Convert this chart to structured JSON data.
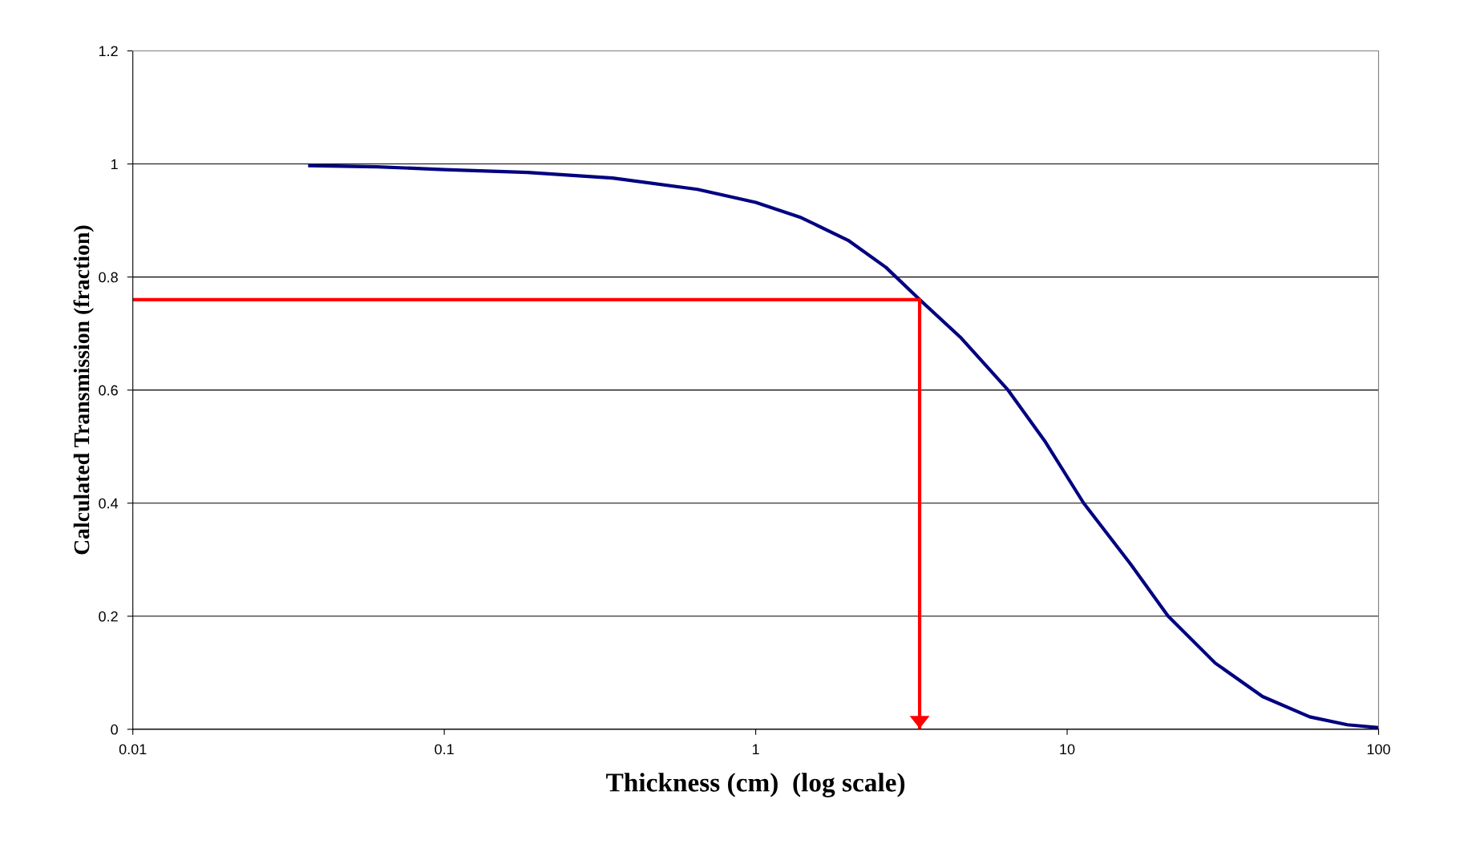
{
  "chart_data": {
    "type": "line",
    "xlabel": "Thickness (cm)  (log scale)",
    "ylabel": "Calculated Transmission (fraction)",
    "log": "x",
    "grid": "y",
    "xlim": [
      0.01,
      100
    ],
    "ylim": [
      0,
      1.2
    ],
    "xticks": [
      {
        "value": 0.01,
        "label": "0.01"
      },
      {
        "value": 0.1,
        "label": "0.1"
      },
      {
        "value": 1,
        "label": "1"
      },
      {
        "value": 10,
        "label": "10"
      },
      {
        "value": 100,
        "label": "100"
      }
    ],
    "yticks": [
      0,
      0.2,
      0.4,
      0.6,
      0.8,
      1,
      1.2
    ],
    "series": [
      {
        "color": "#000080",
        "x": [
          0.037,
          0.061,
          0.1,
          0.185,
          0.347,
          0.65,
          1,
          1.4,
          1.98,
          2.62,
          3.36,
          4.57,
          6.46,
          8.52,
          11.3,
          16,
          21.1,
          29.9,
          42.4,
          60.1,
          79.4,
          100
        ],
        "values": [
          0.997,
          0.995,
          0.99,
          0.985,
          0.975,
          0.955,
          0.932,
          0.905,
          0.865,
          0.817,
          0.76,
          0.692,
          0.6,
          0.508,
          0.4,
          0.292,
          0.2,
          0.117,
          0.058,
          0.022,
          0.008,
          0.003
        ]
      },
      {
        "color": "#ff0000",
        "x": [
          0.01,
          3.36,
          3.36
        ],
        "values": [
          0.76,
          0.76,
          0.0
        ]
      }
    ]
  }
}
